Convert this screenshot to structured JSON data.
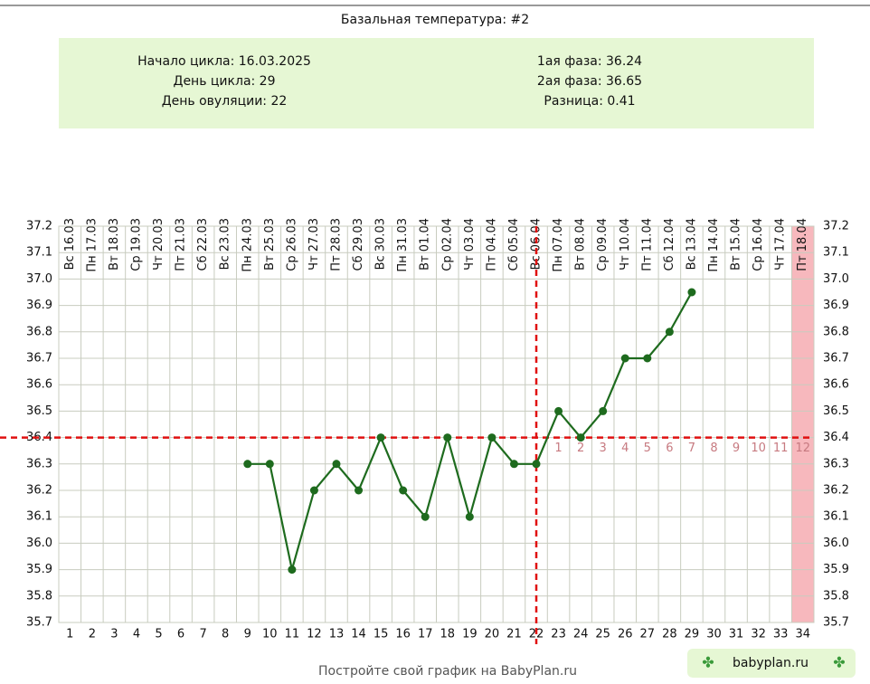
{
  "chart_data": {
    "type": "line",
    "title": "Базальная температура: #2",
    "info_left": [
      "Начало цикла: 16.03.2025",
      "День цикла: 29",
      "День овуляции: 22"
    ],
    "info_right": [
      "1ая фаза: 36.24",
      "2ая фаза: 36.65",
      "Разница: 0.41"
    ],
    "dates": [
      "Вс 16.03",
      "Пн 17.03",
      "Вт 18.03",
      "Ср 19.03",
      "Чт 20.03",
      "Пт 21.03",
      "Сб 22.03",
      "Вс 23.03",
      "Пн 24.03",
      "Вт 25.03",
      "Ср 26.03",
      "Чт 27.03",
      "Пт 28.03",
      "Сб 29.03",
      "Вс 30.03",
      "Пн 31.03",
      "Вт 01.04",
      "Ср 02.04",
      "Чт 03.04",
      "Пт 04.04",
      "Сб 05.04",
      "Вс 06.04",
      "Пн 07.04",
      "Вт 08.04",
      "Ср 09.04",
      "Чт 10.04",
      "Пт 11.04",
      "Сб 12.04",
      "Вс 13.04",
      "Пн 14.04",
      "Вт 15.04",
      "Ср 16.04",
      "Чт 17.04",
      "Пт 18.04"
    ],
    "categories": [
      1,
      2,
      3,
      4,
      5,
      6,
      7,
      8,
      9,
      10,
      11,
      12,
      13,
      14,
      15,
      16,
      17,
      18,
      19,
      20,
      21,
      22,
      23,
      24,
      25,
      26,
      27,
      28,
      29,
      30,
      31,
      32,
      33,
      34
    ],
    "series": [
      {
        "name": "Температура",
        "color": "#1e6b1e",
        "values": [
          null,
          null,
          null,
          null,
          null,
          null,
          null,
          null,
          36.3,
          36.3,
          35.9,
          36.2,
          36.3,
          36.2,
          36.4,
          36.2,
          36.1,
          36.4,
          36.1,
          36.4,
          36.3,
          36.3,
          36.5,
          36.4,
          36.5,
          36.7,
          36.7,
          36.8,
          36.95,
          null,
          null,
          null,
          null,
          null
        ]
      }
    ],
    "ylim": [
      35.7,
      37.2
    ],
    "yticks": [
      35.7,
      35.8,
      35.9,
      {
        "value": 36,
        "label": "36.0"
      },
      36.1,
      36.2,
      36.3,
      36.4,
      36.5,
      36.6,
      36.7,
      36.8,
      36.9,
      {
        "value": 37,
        "label": "37.0"
      },
      37.1,
      37.2
    ],
    "coverline": 36.4,
    "ovulation_day": 22,
    "highlight_day": 34,
    "phase_days": [
      1,
      2,
      3,
      4,
      5,
      6,
      7,
      8,
      9,
      10,
      11,
      12
    ],
    "grid": true,
    "footer": "Постройте свой график на BabyPlan.ru",
    "badge": "babyplan.ru"
  }
}
